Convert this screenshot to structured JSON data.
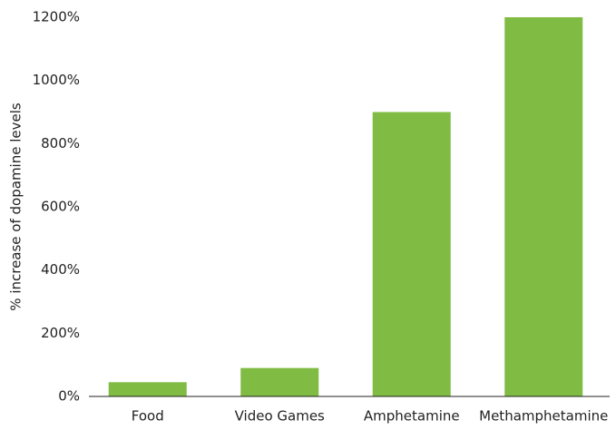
{
  "chart_data": {
    "type": "bar",
    "y_label": "% increase of dopamine levels",
    "categories": [
      "Food",
      "Video Games",
      "Amphetamine",
      "Methamphetamine"
    ],
    "values": [
      45,
      90,
      900,
      1200
    ],
    "color": "#80bc44",
    "ylim": [
      0,
      1200
    ],
    "yticks": [
      {
        "value": 0,
        "label": "0%"
      },
      {
        "value": 200,
        "label": "200%"
      },
      {
        "value": 400,
        "label": "400%"
      },
      {
        "value": 600,
        "label": "600%"
      },
      {
        "value": 800,
        "label": "800%"
      },
      {
        "value": 1000,
        "label": "1000%"
      },
      {
        "value": 1200,
        "label": "1200%"
      }
    ],
    "grid": false
  }
}
